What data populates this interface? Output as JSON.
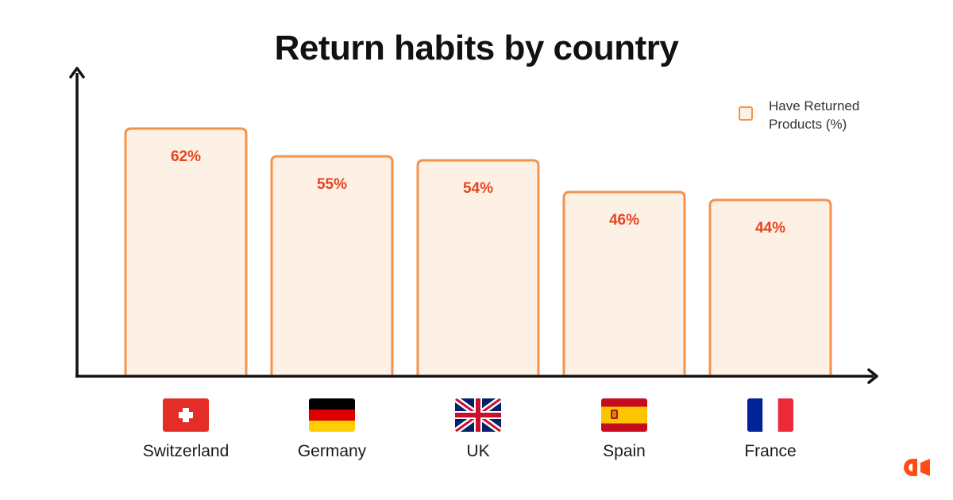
{
  "chart_data": {
    "type": "bar",
    "title": "Return habits by country",
    "categories": [
      "Switzerland",
      "Germany",
      "UK",
      "Spain",
      "France"
    ],
    "series": [
      {
        "name": "Have Returned Products (%)",
        "values": [
          62,
          55,
          54,
          46,
          44
        ]
      }
    ],
    "value_labels": [
      "62%",
      "55%",
      "54%",
      "46%",
      "44%"
    ],
    "ylim": [
      0,
      75
    ],
    "xlabel": "",
    "ylabel": "",
    "grid": false,
    "legend_position": "top-right",
    "colors": {
      "bar_fill": "#fdf1e6",
      "bar_stroke": "#f4924c",
      "label": "#e8441c",
      "axis": "#111111"
    }
  },
  "legend": {
    "label": "Have Returned Products (%)"
  },
  "flags": [
    "swiss-flag-icon",
    "german-flag-icon",
    "uk-flag-icon",
    "spanish-flag-icon",
    "french-flag-icon"
  ],
  "brand": {
    "logo": "brand-logo-icon",
    "color": "#ff4d12"
  }
}
